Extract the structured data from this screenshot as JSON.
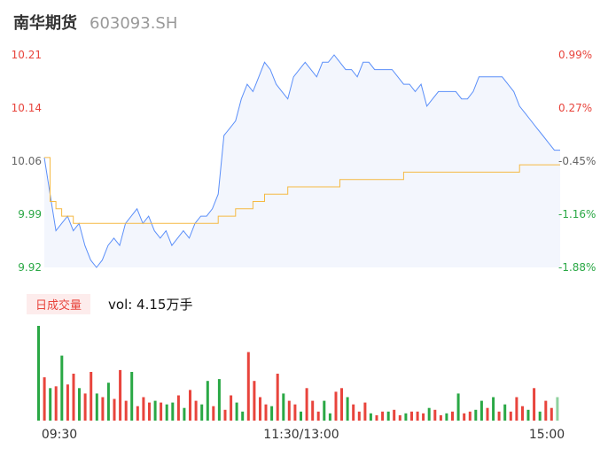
{
  "header": {
    "name": "南华期货",
    "code": "603093.SH"
  },
  "volume": {
    "badge": "日成交量",
    "label": "vol: 4.15万手"
  },
  "colors": {
    "price_line": "#5b8ff9",
    "avg_line": "#f5b943",
    "up": "#e8443c",
    "down": "#2aa845",
    "neutral": "#666666",
    "area": "#f3f6fd"
  },
  "chart_data": [
    {
      "type": "line",
      "title": "",
      "ylim": [
        9.92,
        10.21
      ],
      "y_ticks_left": [
        "10.21",
        "10.14",
        "10.06",
        "9.99",
        "9.92"
      ],
      "y_ticks_right": [
        "0.99%",
        "0.27%",
        "-0.45%",
        "-1.16%",
        "-1.88%"
      ],
      "x_ticks": [
        "09:30",
        "11:30/13:00",
        "15:00"
      ],
      "series": [
        {
          "values": [
            10.07,
            10.02,
            9.97,
            9.98,
            9.99,
            9.97,
            9.98,
            9.95,
            9.93,
            9.92,
            9.93,
            9.95,
            9.96,
            9.95,
            9.98,
            9.99,
            10.0,
            9.98,
            9.99,
            9.97,
            9.96,
            9.97,
            9.95,
            9.96,
            9.97,
            9.96,
            9.98,
            9.99,
            9.99,
            10.0,
            10.02,
            10.1,
            10.11,
            10.12,
            10.15,
            10.17,
            10.16,
            10.18,
            10.2,
            10.19,
            10.17,
            10.16,
            10.15,
            10.18,
            10.19,
            10.2,
            10.19,
            10.18,
            10.2,
            10.2,
            10.21,
            10.2,
            10.19,
            10.19,
            10.18,
            10.2,
            10.2,
            10.19,
            10.19,
            10.19,
            10.19,
            10.18,
            10.17,
            10.17,
            10.16,
            10.17,
            10.14,
            10.15,
            10.16,
            10.16,
            10.16,
            10.16,
            10.15,
            10.15,
            10.16,
            10.18,
            10.18,
            10.18,
            10.18,
            10.18,
            10.17,
            10.16,
            10.14,
            10.13,
            10.12,
            10.11,
            10.1,
            10.09,
            10.08,
            10.08
          ]
        },
        {
          "values": [
            10.07,
            10.01,
            10.0,
            9.99,
            9.99,
            9.98,
            9.98,
            9.98,
            9.98,
            9.98,
            9.98,
            9.98,
            9.98,
            9.98,
            9.98,
            9.98,
            9.98,
            9.98,
            9.98,
            9.98,
            9.98,
            9.98,
            9.98,
            9.98,
            9.98,
            9.98,
            9.98,
            9.98,
            9.98,
            9.98,
            9.99,
            9.99,
            9.99,
            10.0,
            10.0,
            10.0,
            10.01,
            10.01,
            10.02,
            10.02,
            10.02,
            10.02,
            10.03,
            10.03,
            10.03,
            10.03,
            10.03,
            10.03,
            10.03,
            10.03,
            10.03,
            10.04,
            10.04,
            10.04,
            10.04,
            10.04,
            10.04,
            10.04,
            10.04,
            10.04,
            10.04,
            10.04,
            10.05,
            10.05,
            10.05,
            10.05,
            10.05,
            10.05,
            10.05,
            10.05,
            10.05,
            10.05,
            10.05,
            10.05,
            10.05,
            10.05,
            10.05,
            10.05,
            10.05,
            10.05,
            10.05,
            10.05,
            10.06,
            10.06,
            10.06,
            10.06,
            10.06,
            10.06,
            10.06,
            10.06
          ]
        }
      ]
    },
    {
      "type": "bar",
      "title": "",
      "values": [
        105,
        48,
        36,
        38,
        72,
        40,
        52,
        36,
        30,
        54,
        30,
        26,
        42,
        24,
        56,
        22,
        54,
        16,
        26,
        20,
        22,
        20,
        18,
        20,
        28,
        14,
        34,
        22,
        18,
        44,
        16,
        46,
        12,
        28,
        20,
        10,
        76,
        44,
        26,
        18,
        16,
        52,
        30,
        22,
        18,
        10,
        36,
        22,
        10,
        22,
        8,
        32,
        36,
        26,
        18,
        10,
        20,
        8,
        6,
        10,
        10,
        12,
        6,
        8,
        10,
        10,
        8,
        14,
        12,
        6,
        8,
        10,
        30,
        8,
        10,
        12,
        22,
        14,
        26,
        10,
        18,
        10,
        26,
        16,
        12,
        36,
        10,
        22,
        14,
        26
      ],
      "directions": [
        "d",
        "u",
        "d",
        "u",
        "d",
        "u",
        "u",
        "d",
        "u",
        "u",
        "d",
        "u",
        "d",
        "u",
        "u",
        "u",
        "d",
        "u",
        "u",
        "u",
        "d",
        "u",
        "d",
        "d",
        "u",
        "d",
        "u",
        "u",
        "d",
        "d",
        "u",
        "d",
        "u",
        "u",
        "d",
        "d",
        "u",
        "u",
        "u",
        "u",
        "d",
        "u",
        "d",
        "u",
        "u",
        "d",
        "u",
        "u",
        "u",
        "d",
        "d",
        "u",
        "u",
        "d",
        "u",
        "u",
        "u",
        "d",
        "u",
        "u",
        "d",
        "u",
        "u",
        "d",
        "u",
        "u",
        "u",
        "d",
        "u",
        "u",
        "d",
        "u",
        "d",
        "u",
        "u",
        "d",
        "d",
        "u",
        "d",
        "u",
        "d",
        "u",
        "u",
        "u",
        "d",
        "u",
        "d",
        "u",
        "u",
        "n"
      ]
    }
  ]
}
